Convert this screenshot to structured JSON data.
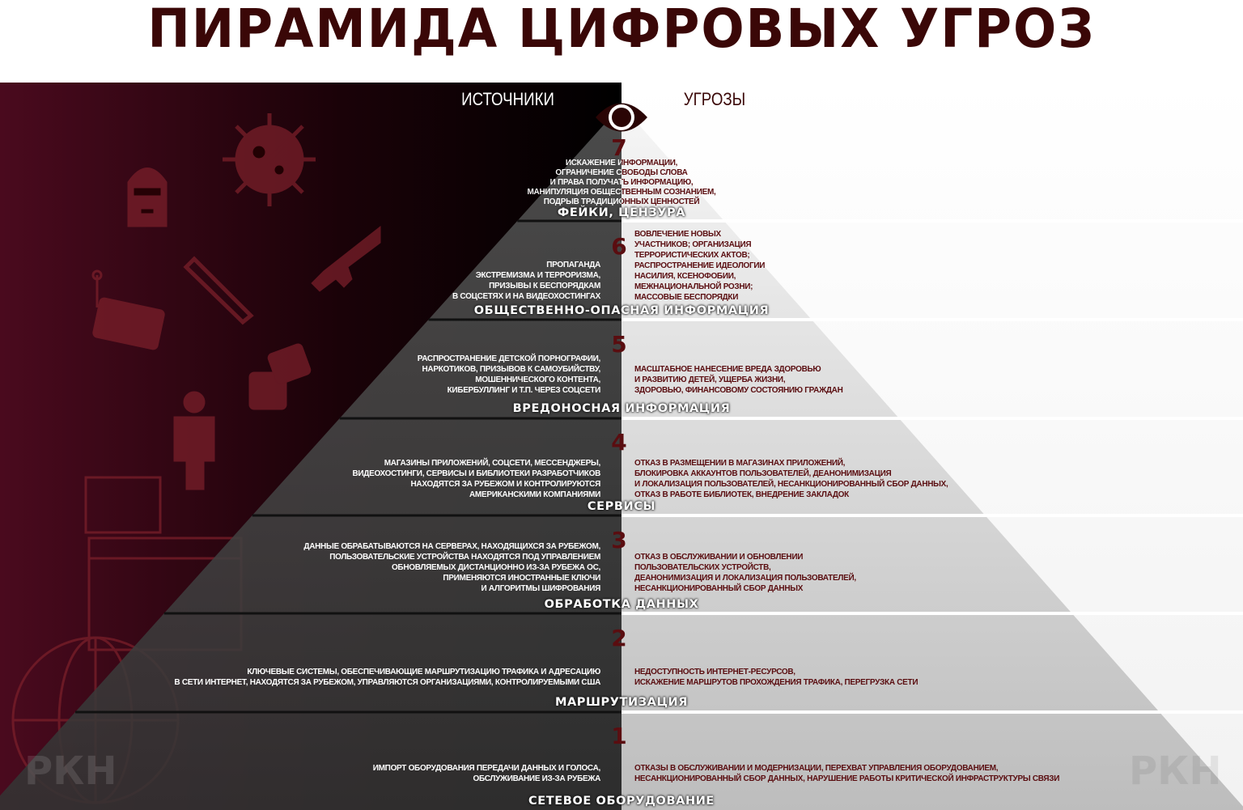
{
  "title": "ПИРАМИДА ЦИФРОВЫХ УГРОЗ",
  "headers": {
    "sources": "ИСТОЧНИКИ",
    "threats": "УГРОЗЫ"
  },
  "watermark": "РКН",
  "colors": {
    "title": "#3a0707",
    "accent": "#5a0d10",
    "left_bg": "#4a0a1e",
    "icons": "#8a2a35"
  },
  "icons": [
    "eye-icon",
    "virus-icon",
    "balaclava-icon",
    "rifle-icon",
    "syringe-icon",
    "credit-card-icon",
    "dice-icon",
    "person-phone-icon",
    "browser-window-icon",
    "globe-arrows-icon"
  ],
  "tiers": [
    {
      "number": "7",
      "label": "ФЕЙКИ, ЦЕНЗУРА",
      "center": "ИСКАЖЕНИЕ ИНФОРМАЦИИ,\nОГРАНИЧЕНИЕ СВОБОДЫ СЛОВА\nИ ПРАВА ПОЛУЧАТЬ ИНФОРМАЦИЮ,\nМАНИПУЛЯЦИЯ ОБЩЕСТВЕННЫМ СОЗНАНИЕМ,\nПОДРЫВ ТРАДИЦИОННЫХ ЦЕННОСТЕЙ"
    },
    {
      "number": "6",
      "label": "ОБЩЕСТВЕННО-ОПАСНАЯ ИНФОРМАЦИЯ",
      "source": "ПРОПАГАНДА\nЭКСТРЕМИЗМА И ТЕРРОРИЗМА,\nПРИЗЫВЫ К БЕСПОРЯДКАМ\nВ СОЦСЕТЯХ И НА ВИДЕОХОСТИНГАХ",
      "threat": "ВОВЛЕЧЕНИЕ НОВЫХ\nУЧАСТНИКОВ; ОРГАНИЗАЦИЯ\nТЕРРОРИСТИЧЕСКИХ АКТОВ;\nРАСПРОСТРАНЕНИЕ ИДЕОЛОГИИ\nНАСИЛИЯ, КСЕНОФОБИИ,\nМЕЖНАЦИОНАЛЬНОЙ РОЗНИ;\nМАССОВЫЕ БЕСПОРЯДКИ"
    },
    {
      "number": "5",
      "label": "ВРЕДОНОСНАЯ ИНФОРМАЦИЯ",
      "source": "РАСПРОСТРАНЕНИЕ ДЕТСКОЙ ПОРНОГРАФИИ,\nНАРКОТИКОВ, ПРИЗЫВОВ К САМОУБИЙСТВУ,\nМОШЕННИЧЕСКОГО КОНТЕНТА,\nКИБЕРБУЛЛИНГ И Т.П. ЧЕРЕЗ СОЦСЕТИ",
      "threat": "МАСШТАБНОЕ НАНЕСЕНИЕ ВРЕДА ЗДОРОВЬЮ\nИ РАЗВИТИЮ ДЕТЕЙ, УЩЕРБА ЖИЗНИ,\nЗДОРОВЬЮ, ФИНАНСОВОМУ СОСТОЯНИЮ ГРАЖДАН"
    },
    {
      "number": "4",
      "label": "СЕРВИСЫ",
      "source": "МАГАЗИНЫ ПРИЛОЖЕНИЙ, СОЦСЕТИ, МЕССЕНДЖЕРЫ,\nВИДЕОХОСТИНГИ, СЕРВИСЫ И БИБЛИОТЕКИ РАЗРАБОТЧИКОВ\nНАХОДЯТСЯ ЗА РУБЕЖОМ И КОНТРОЛИРУЮТСЯ\nАМЕРИКАНСКИМИ КОМПАНИЯМИ",
      "threat": "ОТКАЗ В РАЗМЕЩЕНИИ В МАГАЗИНАХ ПРИЛОЖЕНИЙ,\nБЛОКИРОВКА АККАУНТОВ ПОЛЬЗОВАТЕЛЕЙ, ДЕАНОНИМИЗАЦИЯ\nИ ЛОКАЛИЗАЦИЯ ПОЛЬЗОВАТЕЛЕЙ, НЕСАНКЦИОНИРОВАННЫЙ СБОР ДАННЫХ,\nОТКАЗ В РАБОТЕ БИБЛИОТЕК, ВНЕДРЕНИЕ ЗАКЛАДОК"
    },
    {
      "number": "3",
      "label": "ОБРАБОТКА ДАННЫХ",
      "source": "ДАННЫЕ ОБРАБАТЫВАЮТСЯ НА СЕРВЕРАХ, НАХОДЯЩИХСЯ ЗА РУБЕЖОМ,\nПОЛЬЗОВАТЕЛЬСКИЕ УСТРОЙСТВА НАХОДЯТСЯ ПОД УПРАВЛЕНИЕМ\nОБНОВЛЯЕМЫХ ДИСТАНЦИОННО ИЗ-ЗА РУБЕЖА ОС,\nПРИМЕНЯЮТСЯ ИНОСТРАННЫЕ КЛЮЧИ\nИ АЛГОРИТМЫ ШИФРОВАНИЯ",
      "threat": "ОТКАЗ В ОБСЛУЖИВАНИИ И ОБНОВЛЕНИИ\nПОЛЬЗОВАТЕЛЬСКИХ УСТРОЙСТВ,\nДЕАНОНИМИЗАЦИЯ И ЛОКАЛИЗАЦИЯ ПОЛЬЗОВАТЕЛЕЙ,\nНЕСАНКЦИОНИРОВАННЫЙ СБОР ДАННЫХ"
    },
    {
      "number": "2",
      "label": "МАРШРУТИЗАЦИЯ",
      "source": "КЛЮЧЕВЫЕ СИСТЕМЫ, ОБЕСПЕЧИВАЮЩИЕ МАРШРУТИЗАЦИЮ ТРАФИКА И АДРЕСАЦИЮ\nВ СЕТИ ИНТЕРНЕТ, НАХОДЯТСЯ ЗА РУБЕЖОМ, УПРАВЛЯЮТСЯ ОРГАНИЗАЦИЯМИ, КОНТРОЛИРУЕМЫМИ США",
      "threat": "НЕДОСТУПНОСТЬ ИНТЕРНЕТ-РЕСУРСОВ,\nИСКАЖЕНИЕ МАРШРУТОВ ПРОХОЖДЕНИЯ ТРАФИКА, ПЕРЕГРУЗКА СЕТИ"
    },
    {
      "number": "1",
      "label": "СЕТЕВОЕ ОБОРУДОВАНИЕ",
      "source": "ИМПОРТ ОБОРУДОВАНИЯ ПЕРЕДАЧИ ДАННЫХ И ГОЛОСА,\nОБСЛУЖИВАНИЕ ИЗ-ЗА РУБЕЖА",
      "threat": "ОТКАЗЫ В ОБСЛУЖИВАНИИ И МОДЕРНИЗАЦИИ, ПЕРЕХВАТ УПРАВЛЕНИЯ ОБОРУДОВАНИЕМ,\nНЕСАНКЦИОНИРОВАННЫЙ СБОР ДАННЫХ, НАРУШЕНИЕ РАБОТЫ КРИТИЧЕСКОЙ ИНФРАСТРУКТУРЫ СВЯЗИ"
    }
  ]
}
